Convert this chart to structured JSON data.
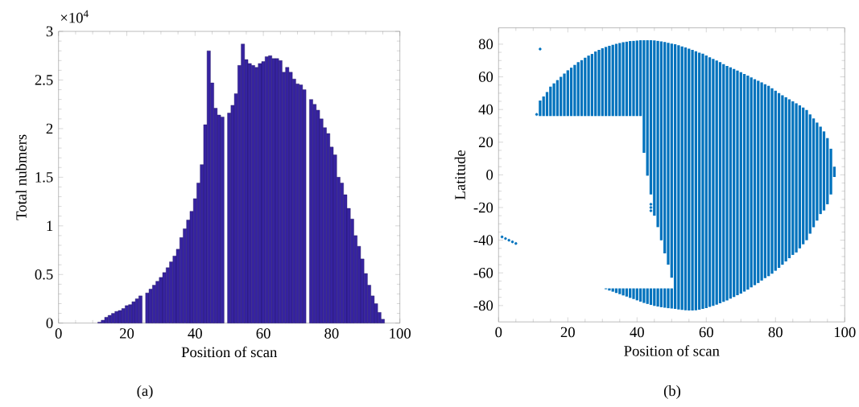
{
  "chart_data": [
    {
      "type": "bar",
      "xlabel": "Position of scan",
      "ylabel": "Total nubmers",
      "annotations": [
        "×10$^{4}$",
        "(a)"
      ],
      "color": "#3623a0",
      "x": [
        12,
        13,
        14,
        15,
        16,
        17,
        18,
        19,
        20,
        21,
        22,
        23,
        24,
        25,
        26,
        27,
        28,
        29,
        30,
        31,
        32,
        33,
        34,
        35,
        36,
        37,
        38,
        39,
        40,
        41,
        42,
        43,
        44,
        45,
        46,
        47,
        48,
        49,
        50,
        51,
        52,
        53,
        54,
        55,
        56,
        57,
        58,
        59,
        60,
        61,
        62,
        63,
        64,
        65,
        66,
        67,
        68,
        69,
        70,
        71,
        72,
        73,
        74,
        75,
        76,
        77,
        78,
        79,
        80,
        81,
        82,
        83,
        84,
        85,
        86,
        87,
        88,
        89,
        90,
        91,
        92,
        93,
        94,
        95
      ],
      "values": [
        0.01,
        0.03,
        0.06,
        0.08,
        0.1,
        0.12,
        0.13,
        0.15,
        0.18,
        0.19,
        0.22,
        0.25,
        0.28,
        null,
        0.31,
        0.35,
        0.39,
        0.43,
        0.47,
        0.52,
        0.57,
        0.63,
        0.69,
        0.76,
        0.88,
        0.97,
        1.06,
        1.15,
        1.28,
        1.44,
        1.63,
        2.04,
        2.8,
        2.47,
        2.21,
        2.14,
        2.12,
        null,
        2.16,
        2.24,
        2.36,
        2.65,
        2.87,
        2.71,
        2.67,
        2.65,
        2.63,
        2.67,
        2.69,
        2.74,
        2.75,
        2.72,
        2.72,
        2.7,
        2.58,
        2.63,
        2.58,
        2.51,
        2.46,
        2.45,
        2.4,
        null,
        2.3,
        2.25,
        2.19,
        2.1,
        2.01,
        1.95,
        1.81,
        1.73,
        1.5,
        1.44,
        1.32,
        1.18,
        1.07,
        0.9,
        0.79,
        0.66,
        0.51,
        0.39,
        0.28,
        0.2,
        0.11,
        0.04
      ],
      "xlim": [
        0,
        100
      ],
      "xticks": [
        0,
        20,
        40,
        60,
        80,
        100
      ],
      "ylim": [
        0,
        3
      ],
      "yticks": [
        0,
        0.5,
        1,
        1.5,
        2,
        2.5,
        3
      ]
    },
    {
      "type": "bar",
      "xlabel": "Position of scan",
      "ylabel": "Latitude",
      "annotations": [
        "(b)"
      ],
      "xlim": [
        0,
        100
      ],
      "xticks": [
        0,
        20,
        40,
        60,
        80,
        100
      ],
      "ylim": [
        -90,
        90
      ],
      "yticks": [
        -80,
        -60,
        -40,
        -20,
        0,
        20,
        40,
        60,
        80
      ],
      "series": [
        {
          "type": "bar",
          "color": "#0072bd",
          "x": [
            12,
            13,
            14,
            15,
            16,
            17,
            18,
            19,
            20,
            21,
            22,
            23,
            24,
            25,
            26,
            27,
            28,
            29,
            30,
            31,
            32,
            33,
            34,
            35,
            36,
            37,
            38,
            39,
            40,
            41,
            42,
            43,
            44,
            45,
            46,
            47,
            48,
            49,
            50,
            51,
            52,
            53,
            54,
            55,
            56,
            57,
            58,
            59,
            60,
            61,
            62,
            63,
            64,
            65,
            66,
            67,
            68,
            69,
            70,
            71,
            72,
            73,
            74,
            75,
            76,
            77,
            78,
            79,
            80,
            81,
            82,
            83,
            84,
            85,
            86,
            87,
            88,
            89,
            90,
            91,
            92,
            93,
            94,
            95,
            96,
            97
          ],
          "base": [
            36,
            36,
            36,
            36,
            36,
            36,
            36,
            36,
            36,
            36,
            36,
            36,
            36,
            36,
            36,
            36,
            36,
            36,
            36,
            36,
            36,
            36,
            36,
            36,
            36,
            36,
            36,
            36,
            36,
            36,
            13.5,
            -0.5,
            -12,
            -25,
            -32,
            -40,
            -48,
            -55,
            -63,
            -82,
            -82.4,
            -82.7,
            -82.9,
            -83,
            -83,
            -82.9,
            -82.5,
            -82,
            -81.5,
            -80.8,
            -80.2,
            -79.5,
            -78.6,
            -77.7,
            -76.9,
            -75.8,
            -74.8,
            -73.7,
            -72.7,
            -71.5,
            -70.2,
            -68.8,
            -67.5,
            -66.2,
            -64.7,
            -63.2,
            -62,
            -60.5,
            -58.7,
            -56.9,
            -55,
            -53,
            -51,
            -49,
            -47.5,
            -45,
            -42.5,
            -40,
            -36,
            -32,
            -28,
            -24,
            -21.8,
            -18,
            -12,
            -1.3
          ],
          "values": [
            9.5,
            12,
            14.7,
            18,
            20,
            22,
            24,
            26,
            28,
            29.6,
            31.3,
            33,
            34.2,
            35.7,
            37,
            38,
            39.5,
            40.5,
            41.5,
            42.3,
            43,
            43.6,
            44.2,
            44.7,
            45.2,
            45.5,
            45.9,
            46,
            46.2,
            46.4,
            68.9,
            82.9,
            94.4,
            107.3,
            114,
            121.7,
            129.3,
            135.8,
            143.3,
            162,
            161.7,
            161.3,
            160.9,
            160.3,
            159.5,
            158.5,
            157.3,
            156.2,
            154.6,
            152.8,
            151.2,
            149.5,
            147.6,
            145.5,
            143.6,
            141.6,
            139.6,
            137.5,
            135.5,
            133.3,
            130.9,
            128.4,
            126.1,
            123.8,
            121.3,
            118.7,
            116.5,
            113.5,
            110.2,
            106.9,
            103.7,
            100.5,
            97.2,
            94,
            91.3,
            87.5,
            83.7,
            79.7,
            73,
            66.5,
            60,
            53.5,
            48.4,
            40.5,
            28,
            6.3
          ]
        },
        {
          "type": "bar",
          "color": "#0072bd",
          "x": [
            31,
            32,
            33,
            34,
            35,
            36,
            37,
            38,
            39,
            40,
            41,
            42,
            43,
            44,
            45,
            46,
            47,
            48,
            49,
            50
          ],
          "base": [
            -70,
            -70.8,
            -71.5,
            -72.3,
            -73,
            -73.8,
            -74.5,
            -75.3,
            -76,
            -76.8,
            -77.6,
            -78.4,
            -79,
            -79.6,
            -80.2,
            -80.6,
            -81,
            -81.3,
            -81.6,
            -81.8
          ],
          "values": [
            0.5,
            1.3,
            2,
            2.8,
            3.5,
            4.3,
            5,
            5.8,
            6.5,
            7.3,
            8.1,
            8.9,
            9.5,
            10.1,
            10.7,
            11.1,
            11.5,
            11.8,
            12.1,
            12.3
          ]
        },
        {
          "type": "scatter",
          "color": "#0072bd",
          "x": [
            1,
            2,
            3,
            4,
            5,
            11,
            12,
            44,
            44,
            44
          ],
          "values": [
            -38,
            -39,
            -40,
            -41,
            -42,
            37,
            77,
            -18,
            -20,
            -22
          ]
        }
      ]
    }
  ]
}
